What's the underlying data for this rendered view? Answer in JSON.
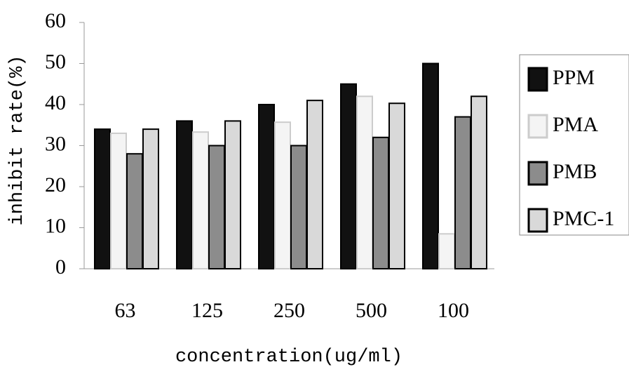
{
  "chart_data": {
    "type": "bar",
    "x_label": "concentration(ug/ml)",
    "y_label": "inhibit rate(%)",
    "categories": [
      "63",
      "125",
      "250",
      "500",
      "100"
    ],
    "series": [
      {
        "name": "PPM",
        "color": "#111111",
        "values": [
          34,
          36,
          40,
          45,
          50
        ]
      },
      {
        "name": "PMA",
        "color": "#f4f4f4",
        "values": [
          33,
          33.3,
          35.7,
          42,
          8.5
        ]
      },
      {
        "name": "PMB",
        "color": "#8c8c8c",
        "values": [
          28,
          30,
          30,
          32,
          37
        ]
      },
      {
        "name": "PMC-1",
        "color": "#d9d9d9",
        "values": [
          34,
          36,
          41,
          40.3,
          42
        ]
      }
    ],
    "ylim": [
      0,
      60
    ],
    "yticks": [
      0,
      10,
      20,
      30,
      40,
      50,
      60
    ],
    "legend": "right"
  }
}
